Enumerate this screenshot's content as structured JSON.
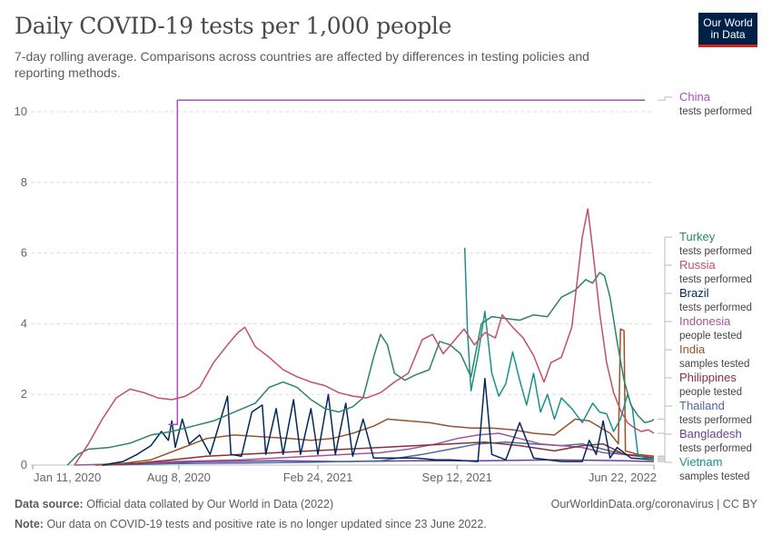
{
  "header": {
    "title": "Daily COVID-19 tests per 1,000 people",
    "subtitle": "7-day rolling average. Comparisons across countries are affected by differences in testing policies and reporting methods.",
    "logo_line1": "Our World",
    "logo_line2": "in Data"
  },
  "footer": {
    "source_label": "Data source:",
    "source_text": "Official data collated by Our World in Data (2022)",
    "link": "OurWorldinData.org/coronavirus | CC BY",
    "note_label": "Note:",
    "note_text": "Our data on COVID-19 tests and positive rate is no longer updated since 23 June 2022."
  },
  "chart_data": {
    "type": "line",
    "title": "Daily COVID-19 tests per 1,000 people",
    "xlabel": "",
    "ylabel": "",
    "ylim": [
      0,
      10
    ],
    "xlim": [
      0,
      893
    ],
    "y_ticks": [
      0,
      2,
      4,
      6,
      8,
      10
    ],
    "x_ticks": [
      {
        "day": 0,
        "label": "Jan 11, 2020"
      },
      {
        "day": 210,
        "label": "Aug 8, 2020"
      },
      {
        "day": 410,
        "label": "Feb 24, 2021"
      },
      {
        "day": 610,
        "label": "Sep 12, 2021"
      },
      {
        "day": 893,
        "label": "Jun 22, 2022"
      }
    ],
    "grid": true,
    "legend": "right",
    "series": [
      {
        "name": "China",
        "sublabel": "tests performed",
        "color": "#a652ba",
        "points": [
          [
            195,
            1.15
          ],
          [
            208,
            1.15
          ],
          [
            208,
            10.33
          ],
          [
            880,
            10.33
          ]
        ]
      },
      {
        "name": "Turkey",
        "sublabel": "tests performed",
        "color": "#2c8465",
        "points": [
          [
            50,
            0
          ],
          [
            65,
            0.3
          ],
          [
            80,
            0.45
          ],
          [
            110,
            0.5
          ],
          [
            140,
            0.62
          ],
          [
            170,
            0.85
          ],
          [
            200,
            0.95
          ],
          [
            230,
            1.1
          ],
          [
            260,
            1.25
          ],
          [
            290,
            1.5
          ],
          [
            320,
            1.75
          ],
          [
            340,
            2.2
          ],
          [
            360,
            2.35
          ],
          [
            380,
            2.2
          ],
          [
            400,
            1.85
          ],
          [
            420,
            1.6
          ],
          [
            440,
            1.5
          ],
          [
            460,
            1.65
          ],
          [
            475,
            1.9
          ],
          [
            490,
            3.05
          ],
          [
            500,
            3.7
          ],
          [
            510,
            3.4
          ],
          [
            520,
            2.6
          ],
          [
            535,
            2.4
          ],
          [
            550,
            2.55
          ],
          [
            570,
            2.7
          ],
          [
            585,
            3.5
          ],
          [
            600,
            3.4
          ],
          [
            615,
            3.15
          ],
          [
            630,
            2.5
          ],
          [
            645,
            4.0
          ],
          [
            660,
            4.2
          ],
          [
            680,
            4.15
          ],
          [
            700,
            4.1
          ],
          [
            720,
            4.25
          ],
          [
            740,
            4.2
          ],
          [
            760,
            4.75
          ],
          [
            780,
            4.95
          ],
          [
            795,
            5.25
          ],
          [
            805,
            5.15
          ],
          [
            815,
            5.45
          ],
          [
            822,
            5.35
          ],
          [
            830,
            4.75
          ],
          [
            840,
            3.5
          ],
          [
            850,
            2.4
          ],
          [
            860,
            1.7
          ],
          [
            870,
            1.4
          ],
          [
            880,
            1.2
          ],
          [
            890,
            1.25
          ],
          [
            893,
            1.3
          ]
        ]
      },
      {
        "name": "Russia",
        "sublabel": "tests performed",
        "color": "#c15065",
        "points": [
          [
            60,
            0
          ],
          [
            80,
            0.6
          ],
          [
            100,
            1.3
          ],
          [
            120,
            1.9
          ],
          [
            140,
            2.15
          ],
          [
            160,
            2.05
          ],
          [
            180,
            1.9
          ],
          [
            200,
            1.85
          ],
          [
            220,
            1.95
          ],
          [
            240,
            2.2
          ],
          [
            260,
            2.9
          ],
          [
            280,
            3.4
          ],
          [
            295,
            3.75
          ],
          [
            305,
            3.9
          ],
          [
            320,
            3.35
          ],
          [
            340,
            3.05
          ],
          [
            360,
            2.7
          ],
          [
            380,
            2.5
          ],
          [
            400,
            2.35
          ],
          [
            420,
            2.25
          ],
          [
            440,
            2.05
          ],
          [
            460,
            1.95
          ],
          [
            480,
            1.9
          ],
          [
            500,
            2.05
          ],
          [
            520,
            2.35
          ],
          [
            540,
            2.6
          ],
          [
            560,
            3.55
          ],
          [
            575,
            3.7
          ],
          [
            590,
            3.15
          ],
          [
            605,
            3.5
          ],
          [
            620,
            3.85
          ],
          [
            635,
            3.4
          ],
          [
            650,
            3.75
          ],
          [
            665,
            3.6
          ],
          [
            675,
            4.25
          ],
          [
            690,
            3.9
          ],
          [
            705,
            3.6
          ],
          [
            720,
            3.1
          ],
          [
            735,
            2.35
          ],
          [
            745,
            2.9
          ],
          [
            760,
            3.05
          ],
          [
            775,
            3.9
          ],
          [
            790,
            6.45
          ],
          [
            798,
            7.25
          ],
          [
            805,
            6.1
          ],
          [
            815,
            4.3
          ],
          [
            825,
            2.9
          ],
          [
            835,
            2.05
          ],
          [
            845,
            1.55
          ],
          [
            855,
            1.2
          ],
          [
            865,
            1.05
          ],
          [
            875,
            0.95
          ],
          [
            885,
            1.0
          ],
          [
            893,
            0.9
          ]
        ]
      },
      {
        "name": "Brazil",
        "sublabel": "tests performed",
        "color": "#00295b",
        "points": [
          [
            100,
            0
          ],
          [
            130,
            0.1
          ],
          [
            150,
            0.3
          ],
          [
            170,
            0.55
          ],
          [
            185,
            0.95
          ],
          [
            195,
            0.7
          ],
          [
            200,
            1.25
          ],
          [
            205,
            0.5
          ],
          [
            215,
            1.3
          ],
          [
            225,
            0.6
          ],
          [
            240,
            0.85
          ],
          [
            255,
            0.3
          ],
          [
            265,
            0.95
          ],
          [
            280,
            1.95
          ],
          [
            285,
            0.3
          ],
          [
            300,
            0.25
          ],
          [
            315,
            1.5
          ],
          [
            330,
            1.7
          ],
          [
            335,
            0.3
          ],
          [
            350,
            1.6
          ],
          [
            360,
            0.3
          ],
          [
            375,
            1.85
          ],
          [
            385,
            0.3
          ],
          [
            400,
            1.6
          ],
          [
            410,
            0.3
          ],
          [
            425,
            2.0
          ],
          [
            435,
            0.3
          ],
          [
            450,
            1.75
          ],
          [
            460,
            0.25
          ],
          [
            475,
            1.3
          ],
          [
            490,
            0.2
          ],
          [
            520,
            0.2
          ],
          [
            550,
            0.2
          ],
          [
            580,
            0.15
          ],
          [
            600,
            0.15
          ],
          [
            640,
            0.1
          ],
          [
            650,
            2.45
          ],
          [
            660,
            0.3
          ],
          [
            680,
            0.15
          ],
          [
            700,
            1.2
          ],
          [
            720,
            0.2
          ],
          [
            760,
            0.1
          ],
          [
            790,
            0.1
          ],
          [
            800,
            0.7
          ],
          [
            810,
            0.3
          ],
          [
            820,
            1.25
          ],
          [
            830,
            0.2
          ],
          [
            840,
            0.5
          ],
          [
            860,
            0.2
          ],
          [
            893,
            0.15
          ]
        ]
      },
      {
        "name": "Indonesia",
        "sublabel": "people tested",
        "color": "#a2559c",
        "points": [
          [
            60,
            0
          ],
          [
            100,
            0.02
          ],
          [
            150,
            0.05
          ],
          [
            200,
            0.1
          ],
          [
            250,
            0.12
          ],
          [
            300,
            0.15
          ],
          [
            350,
            0.2
          ],
          [
            400,
            0.25
          ],
          [
            450,
            0.3
          ],
          [
            500,
            0.35
          ],
          [
            540,
            0.45
          ],
          [
            580,
            0.6
          ],
          [
            610,
            0.75
          ],
          [
            640,
            0.85
          ],
          [
            670,
            0.9
          ],
          [
            700,
            0.75
          ],
          [
            730,
            0.6
          ],
          [
            760,
            0.55
          ],
          [
            790,
            0.5
          ],
          [
            820,
            0.35
          ],
          [
            850,
            0.3
          ],
          [
            893,
            0.25
          ]
        ]
      },
      {
        "name": "India",
        "sublabel": "samples tested",
        "color": "#9a5129",
        "points": [
          [
            90,
            0
          ],
          [
            130,
            0.05
          ],
          [
            170,
            0.15
          ],
          [
            210,
            0.45
          ],
          [
            250,
            0.75
          ],
          [
            290,
            0.85
          ],
          [
            330,
            0.8
          ],
          [
            370,
            0.75
          ],
          [
            400,
            0.7
          ],
          [
            430,
            0.75
          ],
          [
            460,
            0.9
          ],
          [
            490,
            1.1
          ],
          [
            510,
            1.3
          ],
          [
            540,
            1.25
          ],
          [
            570,
            1.2
          ],
          [
            600,
            1.1
          ],
          [
            630,
            1.05
          ],
          [
            660,
            1.05
          ],
          [
            690,
            1.0
          ],
          [
            720,
            0.9
          ],
          [
            750,
            0.85
          ],
          [
            780,
            1.3
          ],
          [
            800,
            1.25
          ],
          [
            830,
            0.9
          ],
          [
            842,
            0.6
          ],
          [
            845,
            3.85
          ],
          [
            850,
            3.8
          ],
          [
            852,
            0.4
          ],
          [
            870,
            0.3
          ],
          [
            893,
            0.25
          ]
        ]
      },
      {
        "name": "Philippines",
        "sublabel": "people tested",
        "color": "#883039",
        "points": [
          [
            100,
            0
          ],
          [
            150,
            0.05
          ],
          [
            200,
            0.15
          ],
          [
            250,
            0.25
          ],
          [
            300,
            0.3
          ],
          [
            350,
            0.35
          ],
          [
            400,
            0.4
          ],
          [
            450,
            0.45
          ],
          [
            500,
            0.5
          ],
          [
            550,
            0.55
          ],
          [
            600,
            0.6
          ],
          [
            650,
            0.65
          ],
          [
            700,
            0.55
          ],
          [
            750,
            0.4
          ],
          [
            790,
            0.55
          ],
          [
            820,
            0.6
          ],
          [
            850,
            0.3
          ],
          [
            893,
            0.2
          ]
        ]
      },
      {
        "name": "Thailand",
        "sublabel": "tests performed",
        "color": "#4c6a9c",
        "points": [
          [
            100,
            0
          ],
          [
            150,
            0.02
          ],
          [
            200,
            0.04
          ],
          [
            300,
            0.06
          ],
          [
            400,
            0.08
          ],
          [
            500,
            0.12
          ],
          [
            560,
            0.3
          ],
          [
            600,
            0.45
          ],
          [
            640,
            0.6
          ],
          [
            680,
            0.65
          ],
          [
            720,
            0.6
          ],
          [
            760,
            0.55
          ],
          [
            790,
            0.6
          ],
          [
            820,
            0.45
          ],
          [
            850,
            0.3
          ],
          [
            893,
            0.2
          ]
        ]
      },
      {
        "name": "Bangladesh",
        "sublabel": "tests performed",
        "color": "#6d3e91",
        "points": [
          [
            90,
            0
          ],
          [
            150,
            0.05
          ],
          [
            250,
            0.1
          ],
          [
            350,
            0.12
          ],
          [
            450,
            0.1
          ],
          [
            550,
            0.12
          ],
          [
            650,
            0.12
          ],
          [
            750,
            0.15
          ],
          [
            850,
            0.12
          ],
          [
            893,
            0.1
          ]
        ]
      },
      {
        "name": "Vietnam",
        "sublabel": "samples tested",
        "color": "#18918d",
        "points": [
          [
            621,
            6.15
          ],
          [
            625,
            3.8
          ],
          [
            630,
            2.1
          ],
          [
            640,
            3.1
          ],
          [
            650,
            4.35
          ],
          [
            660,
            2.6
          ],
          [
            670,
            1.95
          ],
          [
            680,
            2.3
          ],
          [
            690,
            3.2
          ],
          [
            700,
            2.4
          ],
          [
            710,
            1.7
          ],
          [
            720,
            2.6
          ],
          [
            730,
            1.5
          ],
          [
            740,
            2.0
          ],
          [
            750,
            1.3
          ],
          [
            760,
            1.9
          ],
          [
            775,
            1.6
          ],
          [
            790,
            1.2
          ],
          [
            805,
            1.75
          ],
          [
            815,
            1.5
          ],
          [
            825,
            1.45
          ],
          [
            835,
            0.95
          ],
          [
            845,
            1.3
          ],
          [
            855,
            2.0
          ],
          [
            862,
            1.6
          ],
          [
            870,
            0.3
          ],
          [
            880,
            0.2
          ],
          [
            893,
            0.15
          ]
        ]
      }
    ]
  }
}
